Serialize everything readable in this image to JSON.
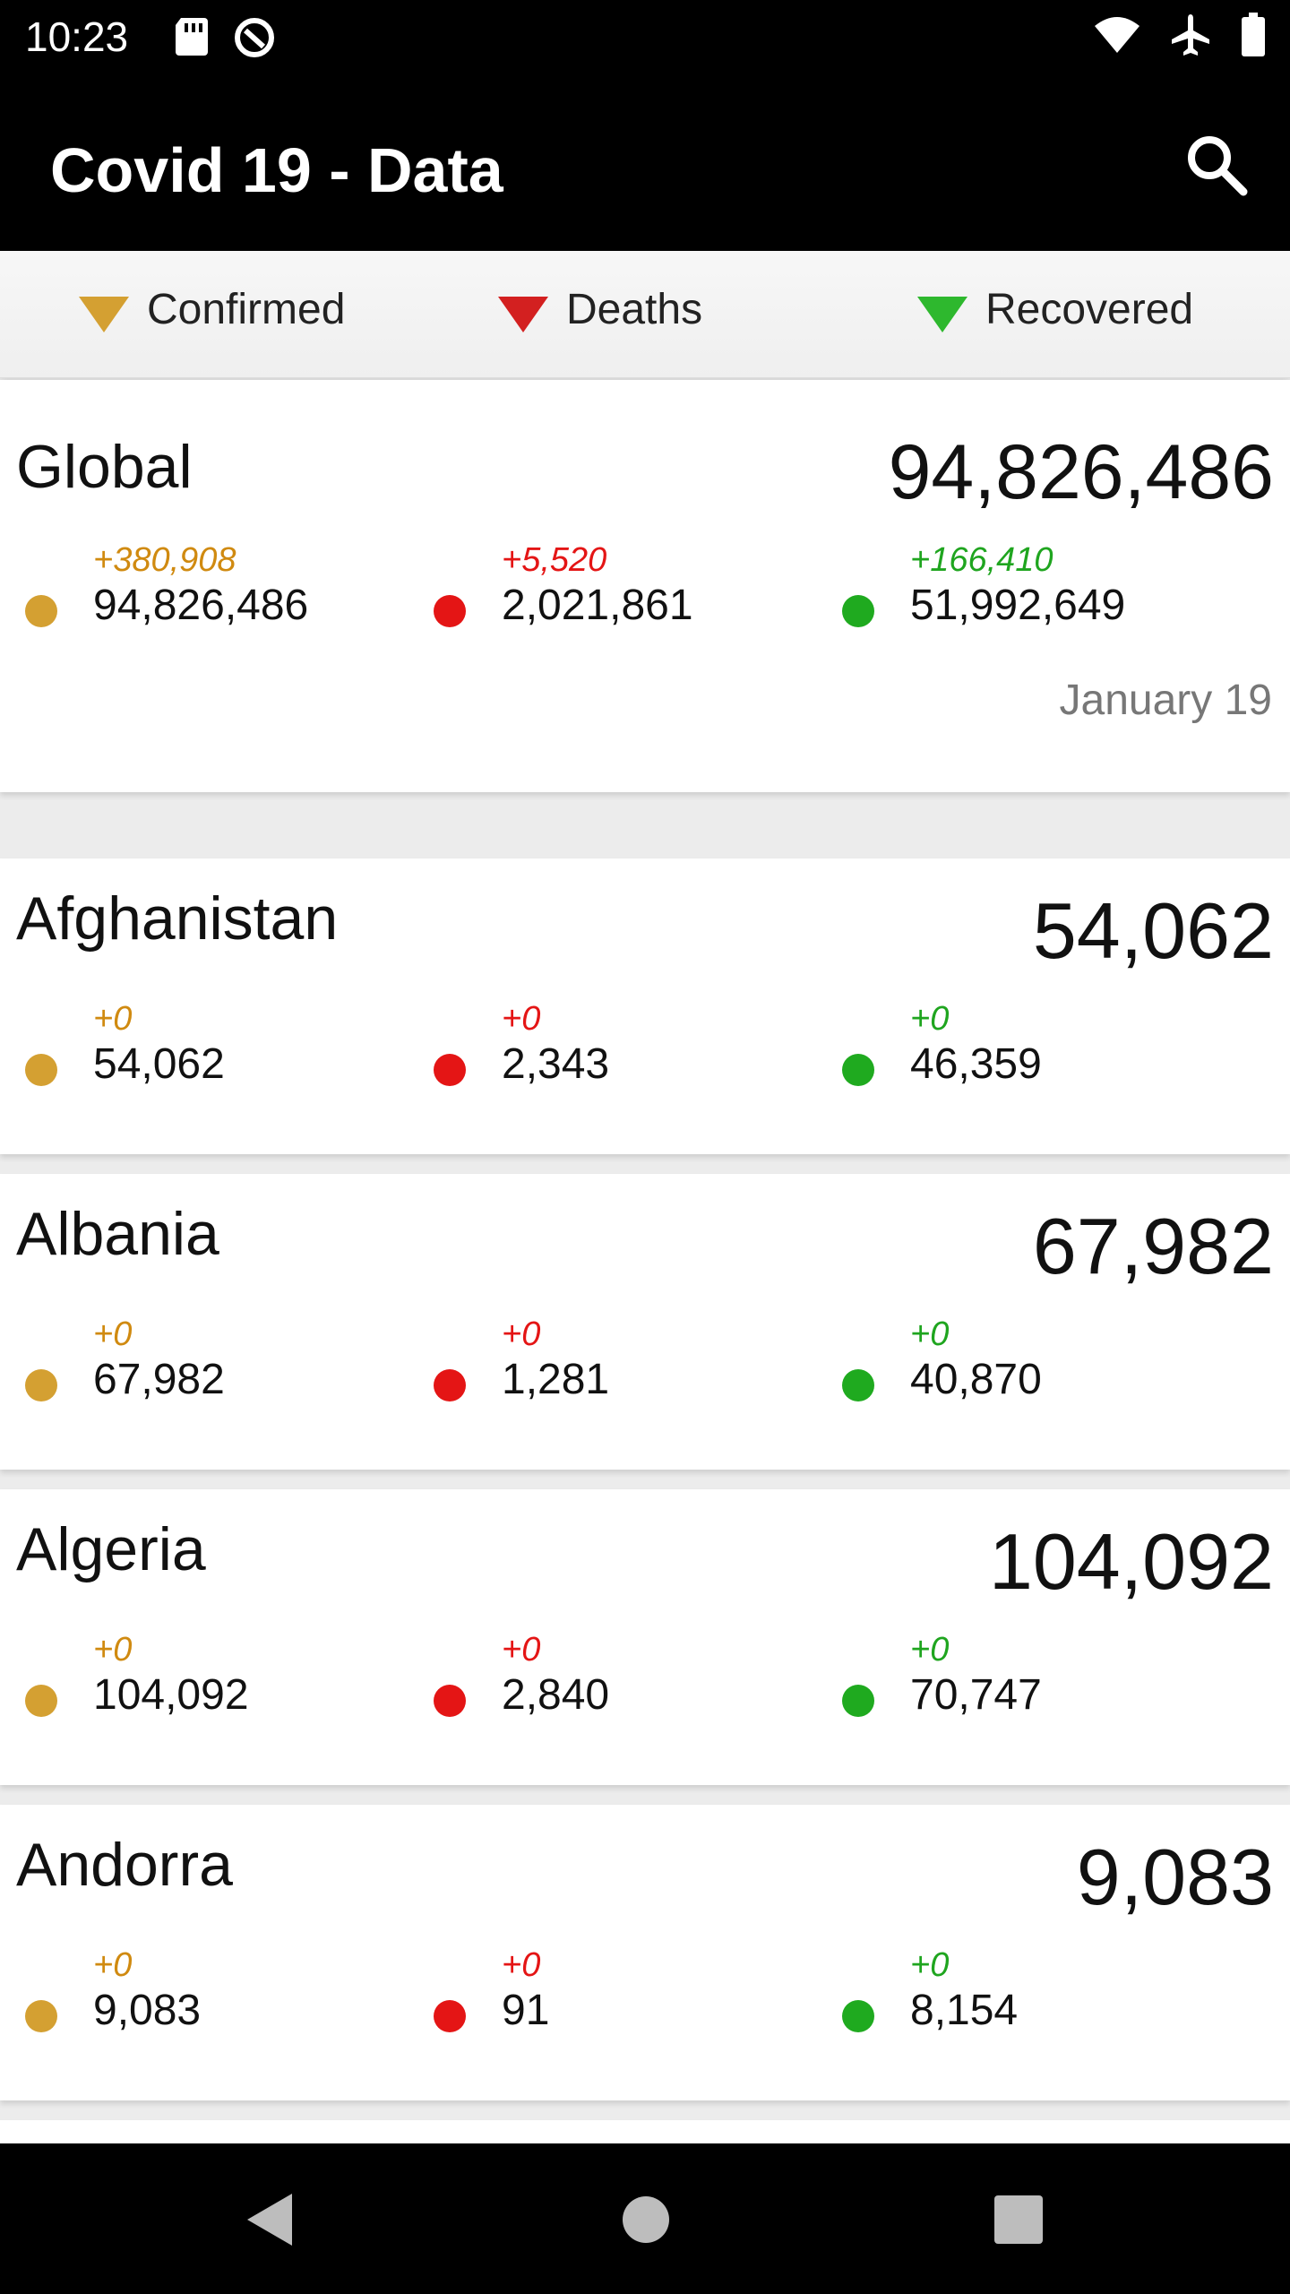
{
  "status_bar": {
    "time": "10:23",
    "left_icons": [
      "sd-card-icon",
      "data-saver-icon"
    ],
    "right_icons": [
      "wifi-icon",
      "airplane-icon",
      "battery-icon"
    ]
  },
  "app_bar": {
    "title": "Covid 19 - Data",
    "search_icon": "search-icon"
  },
  "sort_bar": {
    "items": [
      {
        "label": "Confirmed",
        "color": "#D4A032"
      },
      {
        "label": "Deaths",
        "color": "#D32020"
      },
      {
        "label": "Recovered",
        "color": "#2EB82E"
      }
    ]
  },
  "colors": {
    "confirmed": "#D4A032",
    "deaths": "#E41515",
    "recovered": "#1FAA1F",
    "confirmed_delta": "#D08A10",
    "deaths_delta": "#E41515",
    "recovered_delta": "#1FA51F"
  },
  "global": {
    "name": "Global",
    "total": "94,826,486",
    "confirmed_delta": "+380,908",
    "confirmed": "94,826,486",
    "deaths_delta": "+5,520",
    "deaths": "2,021,861",
    "recovered_delta": "+166,410",
    "recovered": "51,992,649",
    "date": "January 19"
  },
  "countries": [
    {
      "name": "Afghanistan",
      "total": "54,062",
      "confirmed_delta": "+0",
      "confirmed": "54,062",
      "deaths_delta": "+0",
      "deaths": "2,343",
      "recovered_delta": "+0",
      "recovered": "46,359"
    },
    {
      "name": "Albania",
      "total": "67,982",
      "confirmed_delta": "+0",
      "confirmed": "67,982",
      "deaths_delta": "+0",
      "deaths": "1,281",
      "recovered_delta": "+0",
      "recovered": "40,870"
    },
    {
      "name": "Algeria",
      "total": "104,092",
      "confirmed_delta": "+0",
      "confirmed": "104,092",
      "deaths_delta": "+0",
      "deaths": "2,840",
      "recovered_delta": "+0",
      "recovered": "70,747"
    },
    {
      "name": "Andorra",
      "total": "9,083",
      "confirmed_delta": "+0",
      "confirmed": "9,083",
      "deaths_delta": "+0",
      "deaths": "91",
      "recovered_delta": "+0",
      "recovered": "8,154"
    }
  ],
  "nav_bar": {
    "icons": [
      "back-icon",
      "home-icon",
      "recents-icon"
    ]
  }
}
